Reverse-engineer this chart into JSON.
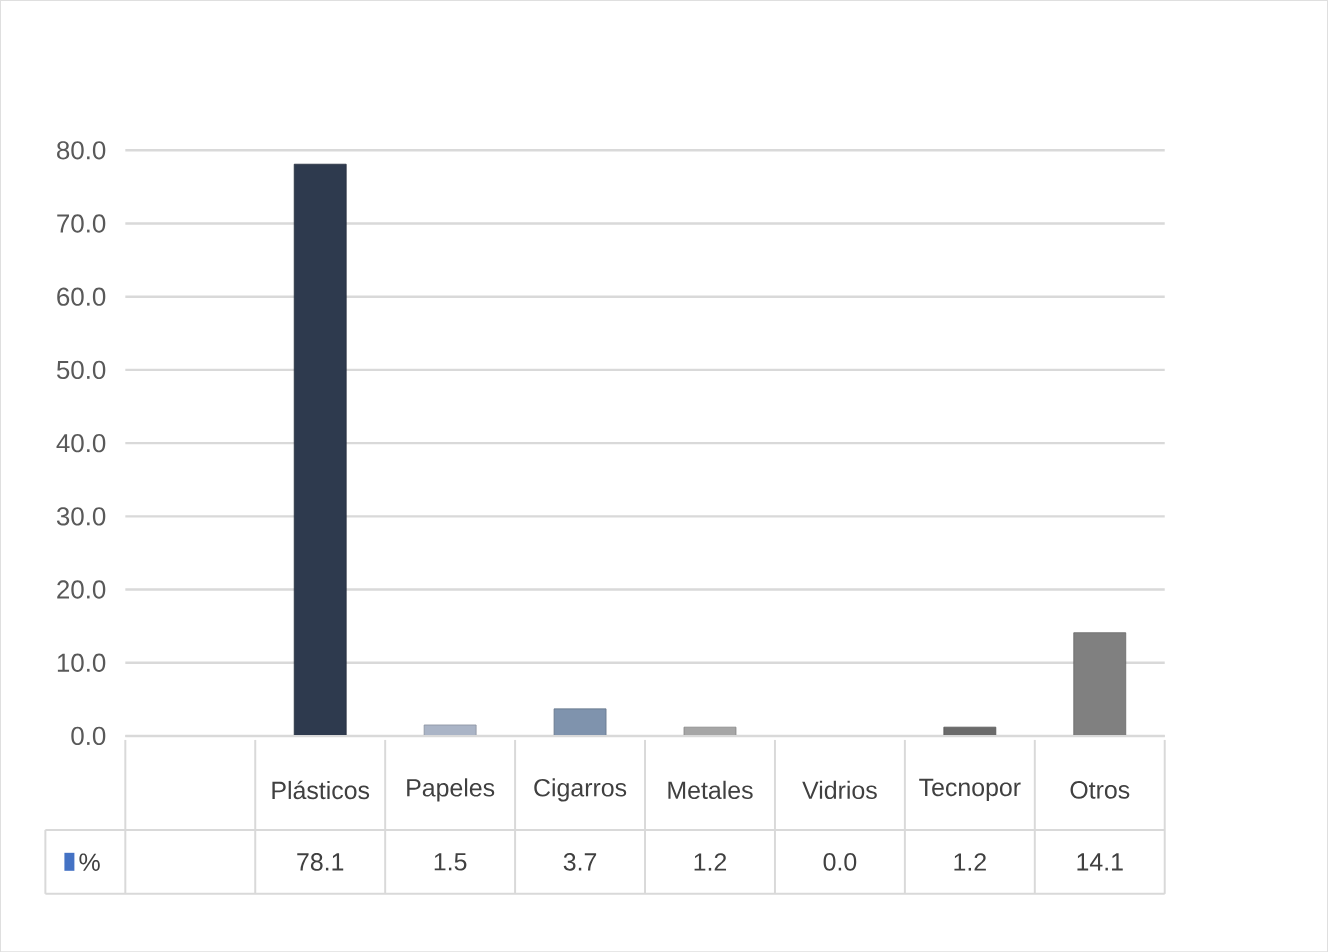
{
  "chart_data": {
    "type": "bar",
    "categories": [
      null,
      "Plásticos",
      "Papeles",
      "Cigarros",
      "Metales",
      "Vidrios",
      "Tecnopor",
      "Otros"
    ],
    "series": [
      {
        "name": "%",
        "color": "#4472c4",
        "colors": [
          null,
          "#2e3a4e",
          "#aab4c6",
          "#7f93ad",
          "#a6a6a6",
          "#9c4a0c",
          "#6b6b6b",
          "#808080"
        ],
        "values": [
          null,
          78.1,
          1.5,
          3.7,
          1.2,
          0.0,
          1.2,
          14.1
        ],
        "value_labels": [
          null,
          "78.1",
          "1.5",
          "3.7",
          "1.2",
          "0.0",
          "1.2",
          "14.1"
        ]
      }
    ],
    "ylim": [
      0,
      80
    ],
    "yticks": [
      {
        "value": 0,
        "label": "0.0"
      },
      {
        "value": 10,
        "label": "10.0"
      },
      {
        "value": 20,
        "label": "20.0"
      },
      {
        "value": 30,
        "label": "30.0"
      },
      {
        "value": 40,
        "label": "40.0"
      },
      {
        "value": 50,
        "label": "50.0"
      },
      {
        "value": 60,
        "label": "60.0"
      },
      {
        "value": 70,
        "label": "70.0"
      },
      {
        "value": 80,
        "label": "80.0"
      }
    ],
    "grid": "y",
    "legend": "bottom"
  }
}
